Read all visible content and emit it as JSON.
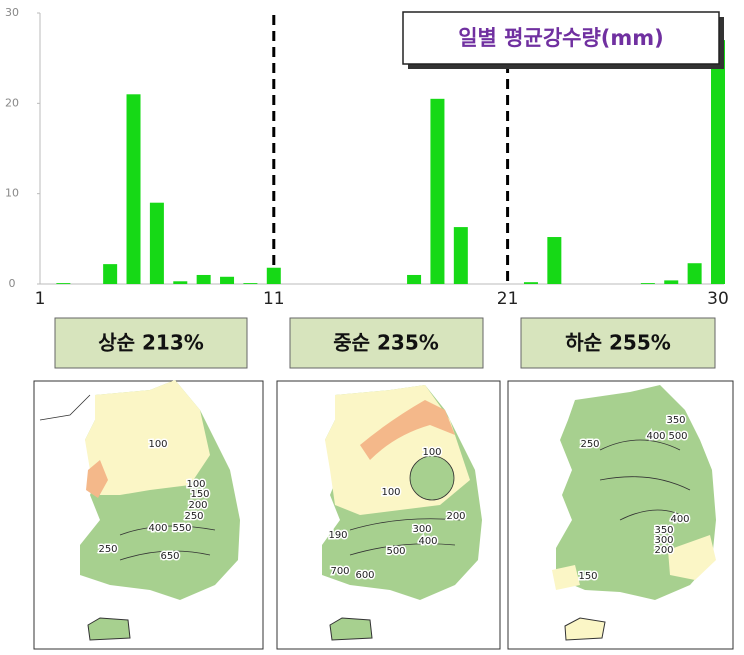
{
  "chart_data": {
    "type": "bar",
    "title": "일별 평균강수량(mm)",
    "x": [
      1,
      2,
      3,
      4,
      5,
      6,
      7,
      8,
      9,
      10,
      11,
      12,
      13,
      14,
      15,
      16,
      17,
      18,
      19,
      20,
      21,
      22,
      23,
      24,
      25,
      26,
      27,
      28,
      29,
      30
    ],
    "values": [
      0,
      0.1,
      0,
      2.2,
      21,
      9,
      0.3,
      1,
      0.8,
      0.1,
      1.8,
      0,
      0,
      0,
      0,
      0,
      1,
      20.5,
      6.3,
      0,
      0,
      0.2,
      5.2,
      0,
      0,
      0,
      0.1,
      0.4,
      2.3,
      27
    ],
    "color": "#16d916",
    "xlim": [
      1,
      30
    ],
    "xticks": [
      1,
      11,
      21,
      30
    ],
    "ylim": [
      0,
      30
    ],
    "yticks": [
      0,
      10,
      20,
      30
    ]
  },
  "panels": [
    "상순 213%",
    "중순 235%",
    "하순 255%"
  ],
  "maps": [
    {
      "labels": [
        "100",
        "100",
        "150",
        "200",
        "250",
        "400",
        "550",
        "250",
        "650"
      ]
    },
    {
      "labels": [
        "100",
        "100",
        "200",
        "300",
        "400",
        "190",
        "500",
        "700",
        "600"
      ]
    },
    {
      "labels": [
        "350",
        "250",
        "400",
        "500",
        "400",
        "350",
        "300",
        "200",
        "150"
      ]
    }
  ]
}
